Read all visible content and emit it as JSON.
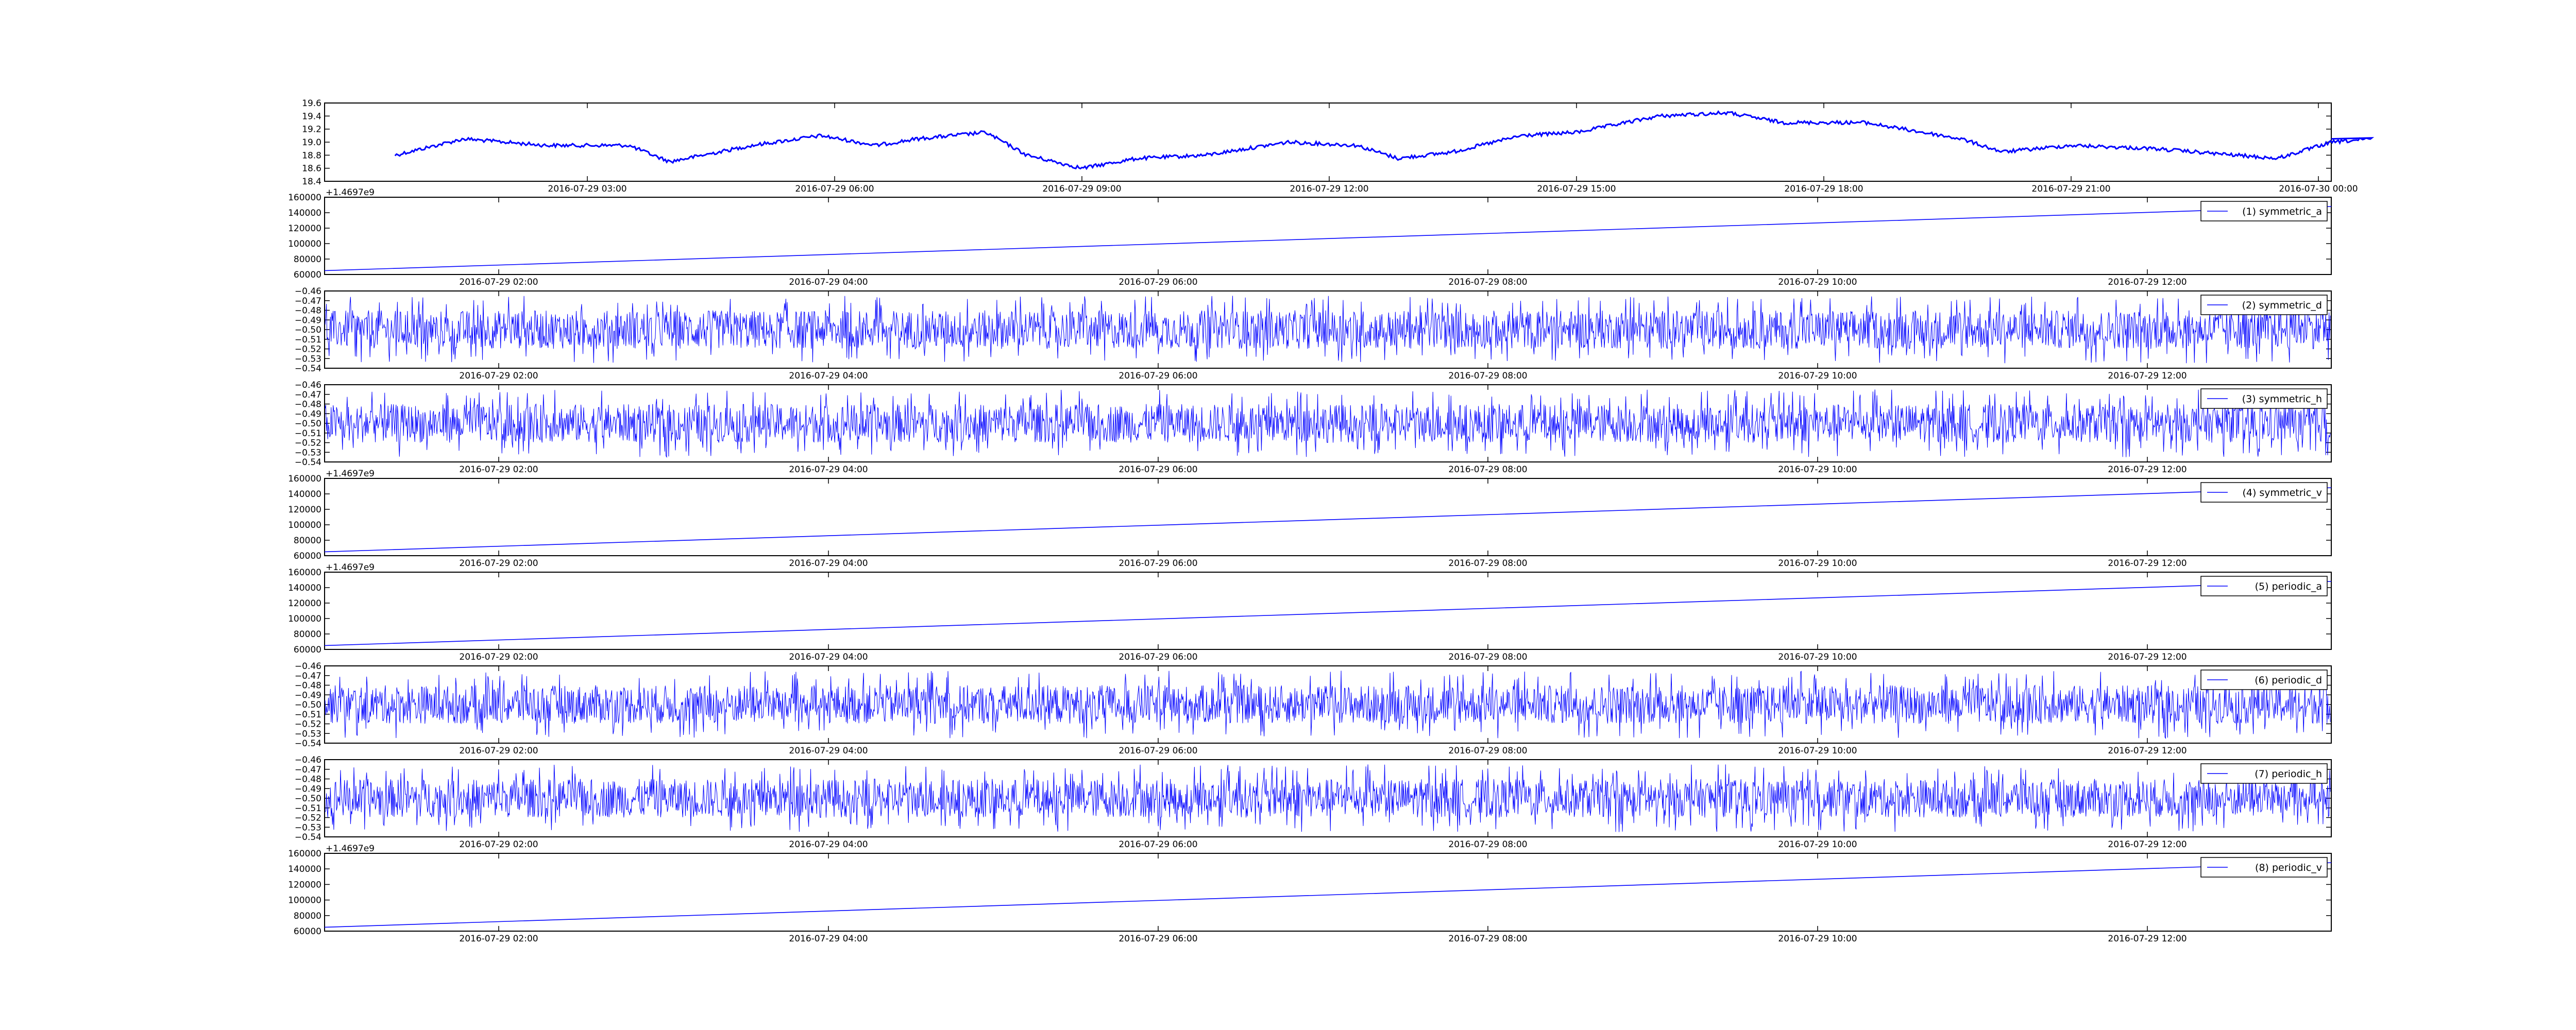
{
  "chart_data": [
    {
      "type": "line",
      "title": "",
      "xlabel": "",
      "ylabel": "",
      "ylim": [
        18.4,
        19.6
      ],
      "yticks": [
        "18.4",
        "18.6",
        "18.8",
        "19.0",
        "19.2",
        "19.4",
        "19.6"
      ],
      "xtick_labels": [
        "2016-07-29 03:00",
        "2016-07-29 06:00",
        "2016-07-29 09:00",
        "2016-07-29 12:00",
        "2016-07-29 15:00",
        "2016-07-29 18:00",
        "2016-07-29 21:00",
        "2016-07-30 00:00"
      ],
      "x": [
        "2016-07-29 00:40",
        "2016-07-29 01:30",
        "2016-07-29 02:30",
        "2016-07-29 03:30",
        "2016-07-29 04:00",
        "2016-07-29 05:00",
        "2016-07-29 05:50",
        "2016-07-29 06:30",
        "2016-07-29 07:00",
        "2016-07-29 07:50",
        "2016-07-29 08:20",
        "2016-07-29 09:00",
        "2016-07-29 09:40",
        "2016-07-29 10:30",
        "2016-07-29 11:30",
        "2016-07-29 12:20",
        "2016-07-29 12:50",
        "2016-07-29 13:30",
        "2016-07-29 14:20",
        "2016-07-29 15:00",
        "2016-07-29 16:00",
        "2016-07-29 16:50",
        "2016-07-29 17:30",
        "2016-07-29 18:30",
        "2016-07-29 19:40",
        "2016-07-29 20:10",
        "2016-07-29 21:00",
        "2016-07-29 22:00",
        "2016-07-29 23:00",
        "2016-07-29 23:30",
        "2016-07-30 00:10",
        "2016-07-30 00:40"
      ],
      "series": [
        {
          "values": [
            18.8,
            19.05,
            18.95,
            18.95,
            18.7,
            18.95,
            19.1,
            18.95,
            19.05,
            19.15,
            18.8,
            18.6,
            18.75,
            18.8,
            19.0,
            18.95,
            18.75,
            18.85,
            19.1,
            19.15,
            19.4,
            19.45,
            19.3,
            19.3,
            19.05,
            18.85,
            18.95,
            18.9,
            18.8,
            18.75,
            19.0,
            19.05
          ]
        }
      ]
    },
    {
      "type": "line",
      "offset_label": "+1.4697e9",
      "ylim": [
        60000,
        160000
      ],
      "yticks": [
        "60000",
        "80000",
        "100000",
        "120000",
        "140000",
        "160000"
      ],
      "xtick_labels": [
        "2016-07-29 02:00",
        "2016-07-29 04:00",
        "2016-07-29 06:00",
        "2016-07-29 08:00",
        "2016-07-29 10:00",
        "2016-07-29 12:00"
      ],
      "x": [
        "2016-07-29 00:20",
        "2016-07-29 12:30"
      ],
      "series": [
        {
          "name": "(1) symmetric_a",
          "values": [
            65000,
            148000
          ]
        }
      ]
    },
    {
      "type": "line",
      "ylim": [
        -0.54,
        -0.46
      ],
      "yticks": [
        "−0.54",
        "−0.53",
        "−0.52",
        "−0.51",
        "−0.50",
        "−0.49",
        "−0.48",
        "−0.47",
        "−0.46"
      ],
      "xtick_labels": [
        "2016-07-29 02:00",
        "2016-07-29 04:00",
        "2016-07-29 06:00",
        "2016-07-29 08:00",
        "2016-07-29 10:00",
        "2016-07-29 12:00"
      ],
      "noise": {
        "center": -0.5,
        "typical_min": -0.52,
        "typical_max": -0.48,
        "extreme_min": -0.535,
        "extreme_max": -0.465
      },
      "series": [
        {
          "name": "(2) symmetric_d"
        }
      ]
    },
    {
      "type": "line",
      "ylim": [
        -0.54,
        -0.46
      ],
      "yticks": [
        "−0.54",
        "−0.53",
        "−0.52",
        "−0.51",
        "−0.50",
        "−0.49",
        "−0.48",
        "−0.47",
        "−0.46"
      ],
      "xtick_labels": [
        "2016-07-29 02:00",
        "2016-07-29 04:00",
        "2016-07-29 06:00",
        "2016-07-29 08:00",
        "2016-07-29 10:00",
        "2016-07-29 12:00"
      ],
      "noise": {
        "center": -0.5,
        "typical_min": -0.52,
        "typical_max": -0.48,
        "extreme_min": -0.535,
        "extreme_max": -0.465
      },
      "series": [
        {
          "name": "(3) symmetric_h"
        }
      ]
    },
    {
      "type": "line",
      "offset_label": "+1.4697e9",
      "ylim": [
        60000,
        160000
      ],
      "yticks": [
        "60000",
        "80000",
        "100000",
        "120000",
        "140000",
        "160000"
      ],
      "xtick_labels": [
        "2016-07-29 02:00",
        "2016-07-29 04:00",
        "2016-07-29 06:00",
        "2016-07-29 08:00",
        "2016-07-29 10:00",
        "2016-07-29 12:00"
      ],
      "x": [
        "2016-07-29 00:20",
        "2016-07-29 12:30"
      ],
      "series": [
        {
          "name": "(4) symmetric_v",
          "values": [
            65000,
            148000
          ]
        }
      ]
    },
    {
      "type": "line",
      "offset_label": "+1.4697e9",
      "ylim": [
        60000,
        160000
      ],
      "yticks": [
        "60000",
        "80000",
        "100000",
        "120000",
        "140000",
        "160000"
      ],
      "xtick_labels": [
        "2016-07-29 02:00",
        "2016-07-29 04:00",
        "2016-07-29 06:00",
        "2016-07-29 08:00",
        "2016-07-29 10:00",
        "2016-07-29 12:00"
      ],
      "x": [
        "2016-07-29 00:20",
        "2016-07-29 12:30"
      ],
      "series": [
        {
          "name": "(5) periodic_a",
          "values": [
            65000,
            148000
          ]
        }
      ]
    },
    {
      "type": "line",
      "ylim": [
        -0.54,
        -0.46
      ],
      "yticks": [
        "−0.54",
        "−0.53",
        "−0.52",
        "−0.51",
        "−0.50",
        "−0.49",
        "−0.48",
        "−0.47",
        "−0.46"
      ],
      "xtick_labels": [
        "2016-07-29 02:00",
        "2016-07-29 04:00",
        "2016-07-29 06:00",
        "2016-07-29 08:00",
        "2016-07-29 10:00",
        "2016-07-29 12:00"
      ],
      "noise": {
        "center": -0.5,
        "typical_min": -0.52,
        "typical_max": -0.48,
        "extreme_min": -0.535,
        "extreme_max": -0.465
      },
      "series": [
        {
          "name": "(6) periodic_d"
        }
      ]
    },
    {
      "type": "line",
      "ylim": [
        -0.54,
        -0.46
      ],
      "yticks": [
        "−0.54",
        "−0.53",
        "−0.52",
        "−0.51",
        "−0.50",
        "−0.49",
        "−0.48",
        "−0.47",
        "−0.46"
      ],
      "xtick_labels": [
        "2016-07-29 02:00",
        "2016-07-29 04:00",
        "2016-07-29 06:00",
        "2016-07-29 08:00",
        "2016-07-29 10:00",
        "2016-07-29 12:00"
      ],
      "noise": {
        "center": -0.5,
        "typical_min": -0.52,
        "typical_max": -0.48,
        "extreme_min": -0.535,
        "extreme_max": -0.465
      },
      "series": [
        {
          "name": "(7) periodic_h"
        }
      ]
    },
    {
      "type": "line",
      "offset_label": "+1.4697e9",
      "ylim": [
        60000,
        160000
      ],
      "yticks": [
        "60000",
        "80000",
        "100000",
        "120000",
        "140000",
        "160000"
      ],
      "xtick_labels": [
        "2016-07-29 02:00",
        "2016-07-29 04:00",
        "2016-07-29 06:00",
        "2016-07-29 08:00",
        "2016-07-29 10:00",
        "2016-07-29 12:00"
      ],
      "x": [
        "2016-07-29 00:20",
        "2016-07-29 12:30"
      ],
      "series": [
        {
          "name": "(8) periodic_v",
          "values": [
            65000,
            148000
          ]
        }
      ]
    }
  ],
  "colors": {
    "line": "#0000ff",
    "axes": "#000000",
    "background": "#ffffff"
  }
}
